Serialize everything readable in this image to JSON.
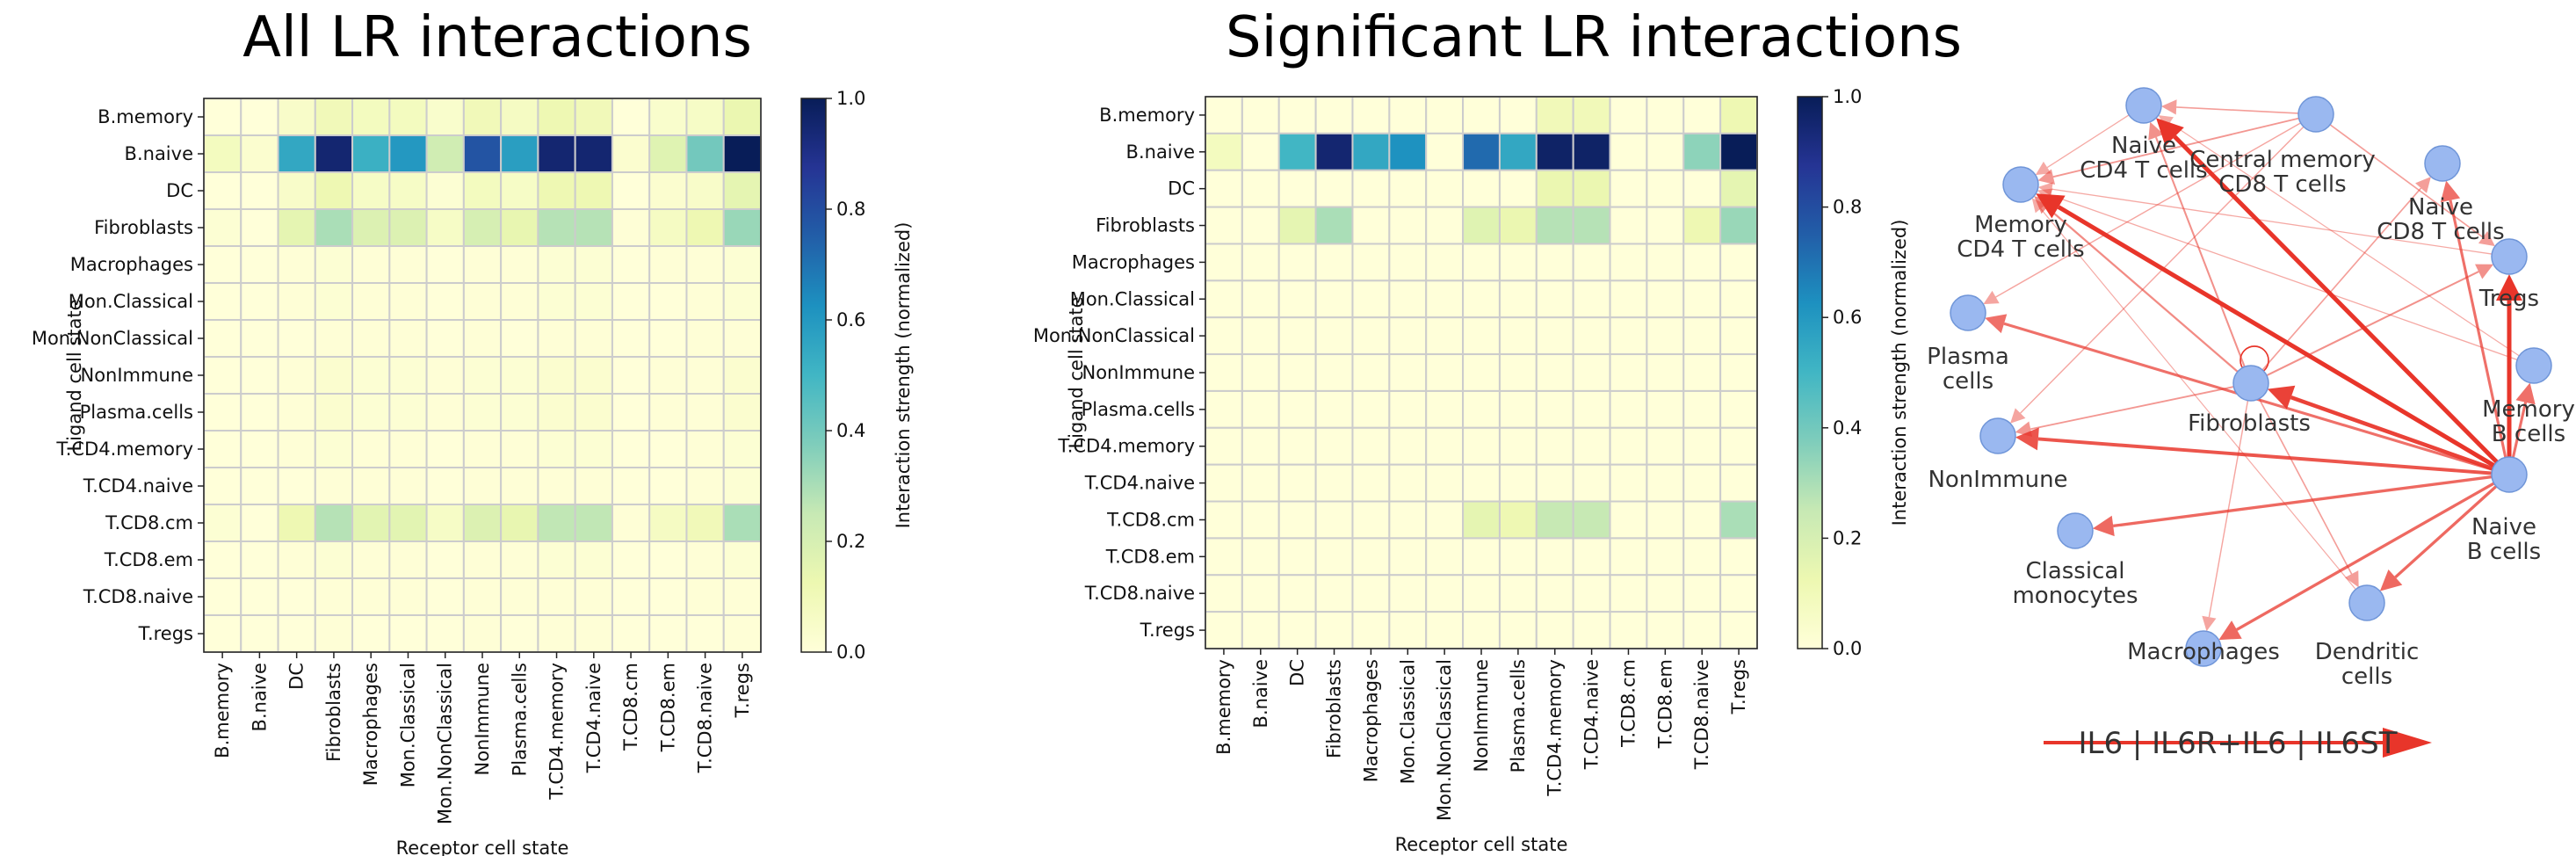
{
  "colorbar_ticks": [
    "0.0",
    "0.2",
    "0.4",
    "0.6",
    "0.8",
    "1.0"
  ],
  "colors": {
    "heatmap_low": "#ffffd9",
    "heatmap_mid": "#41b6c4",
    "heatmap_high": "#081d58",
    "grid": "#cccccc",
    "node_fill": "#9ab8f0",
    "node_stroke": "#6f95d8",
    "edge": "#e8352a"
  },
  "chart_data": [
    {
      "type": "heatmap",
      "title": "All LR interactions",
      "xlabel": "Receptor cell state",
      "ylabel": "Ligand cell state",
      "colorbar_label": "Interaction strength (normalized)",
      "colorbar_range": [
        0,
        1
      ],
      "rows": [
        "B.memory",
        "B.naive",
        "DC",
        "Fibroblasts",
        "Macrophages",
        "Mon.Classical",
        "Mon.NonClassical",
        "NonImmune",
        "Plasma.cells",
        "T.CD4.memory",
        "T.CD4.naive",
        "T.CD8.cm",
        "T.CD8.em",
        "T.CD8.naive",
        "T.regs"
      ],
      "columns": [
        "B.memory",
        "B.naive",
        "DC",
        "Fibroblasts",
        "Macrophages",
        "Mon.Classical",
        "Mon.NonClassical",
        "NonImmune",
        "Plasma.cells",
        "T.CD4.memory",
        "T.CD4.naive",
        "T.CD8.cm",
        "T.CD8.em",
        "T.CD8.naive",
        "T.regs"
      ],
      "values": [
        [
          0,
          0,
          0.05,
          0.1,
          0.08,
          0.08,
          0.04,
          0.1,
          0.07,
          0.12,
          0.1,
          0,
          0.04,
          0.06,
          0.13
        ],
        [
          0.08,
          0.03,
          0.55,
          0.95,
          0.52,
          0.6,
          0.22,
          0.78,
          0.58,
          0.95,
          0.95,
          0.03,
          0.17,
          0.4,
          1.0
        ],
        [
          0,
          0,
          0.05,
          0.12,
          0.06,
          0.06,
          0.02,
          0.08,
          0.06,
          0.12,
          0.12,
          0,
          0.03,
          0.05,
          0.15
        ],
        [
          0.02,
          0,
          0.15,
          0.3,
          0.18,
          0.18,
          0.06,
          0.2,
          0.14,
          0.28,
          0.28,
          0.01,
          0.07,
          0.12,
          0.33
        ],
        [
          0,
          0,
          0.01,
          0.02,
          0.01,
          0.01,
          0,
          0.01,
          0.01,
          0.02,
          0.02,
          0,
          0.01,
          0.01,
          0.02
        ],
        [
          0,
          0,
          0.01,
          0.02,
          0.01,
          0.01,
          0,
          0.01,
          0.01,
          0.02,
          0.02,
          0,
          0,
          0.01,
          0.02
        ],
        [
          0,
          0,
          0,
          0.01,
          0.01,
          0.01,
          0,
          0.01,
          0,
          0.01,
          0.01,
          0,
          0,
          0.01,
          0.01
        ],
        [
          0,
          0,
          0.01,
          0.03,
          0.02,
          0.02,
          0.01,
          0.02,
          0.02,
          0.03,
          0.03,
          0,
          0.01,
          0.01,
          0.03
        ],
        [
          0,
          0,
          0.01,
          0.03,
          0.02,
          0.02,
          0.01,
          0.02,
          0.02,
          0.03,
          0.03,
          0,
          0.01,
          0.01,
          0.03
        ],
        [
          0,
          0,
          0.01,
          0.02,
          0.01,
          0.01,
          0,
          0.01,
          0.01,
          0.02,
          0.02,
          0,
          0,
          0.01,
          0.02
        ],
        [
          0,
          0,
          0,
          0.01,
          0.01,
          0.01,
          0,
          0.01,
          0.01,
          0.01,
          0.01,
          0,
          0,
          0.01,
          0.02
        ],
        [
          0.02,
          0,
          0.12,
          0.28,
          0.16,
          0.16,
          0.06,
          0.18,
          0.14,
          0.26,
          0.26,
          0.01,
          0.07,
          0.1,
          0.3
        ],
        [
          0,
          0,
          0.01,
          0.02,
          0.01,
          0.01,
          0,
          0.01,
          0.01,
          0.02,
          0.02,
          0,
          0,
          0.01,
          0.02
        ],
        [
          0,
          0,
          0,
          0.01,
          0.01,
          0.01,
          0,
          0.01,
          0.01,
          0.01,
          0.01,
          0,
          0,
          0.01,
          0.01
        ],
        [
          0,
          0,
          0,
          0.01,
          0,
          0,
          0,
          0.01,
          0,
          0.01,
          0.01,
          0,
          0,
          0,
          0.01
        ]
      ]
    },
    {
      "type": "heatmap",
      "title": "Significant LR interactions",
      "xlabel": "Receptor cell state",
      "ylabel": "Ligand cell state",
      "colorbar_label": "Interaction strength (normalized)",
      "colorbar_range": [
        0,
        1
      ],
      "rows": [
        "B.memory",
        "B.naive",
        "DC",
        "Fibroblasts",
        "Macrophages",
        "Mon.Classical",
        "Mon.NonClassical",
        "NonImmune",
        "Plasma.cells",
        "T.CD4.memory",
        "T.CD4.naive",
        "T.CD8.cm",
        "T.CD8.em",
        "T.CD8.naive",
        "T.regs"
      ],
      "columns": [
        "B.memory",
        "B.naive",
        "DC",
        "Fibroblasts",
        "Macrophages",
        "Mon.Classical",
        "Mon.NonClassical",
        "NonImmune",
        "Plasma.cells",
        "T.CD4.memory",
        "T.CD4.naive",
        "T.CD8.cm",
        "T.CD8.em",
        "T.CD8.naive",
        "T.regs"
      ],
      "values": [
        [
          0,
          0,
          0,
          0,
          0,
          0,
          0,
          0,
          0,
          0.1,
          0.1,
          0,
          0,
          0,
          0.12
        ],
        [
          0.08,
          0,
          0.5,
          0.95,
          0.55,
          0.62,
          0,
          0.72,
          0.55,
          0.97,
          0.97,
          0,
          0,
          0.35,
          1.0
        ],
        [
          0,
          0,
          0,
          0,
          0,
          0,
          0,
          0,
          0,
          0.13,
          0.13,
          0,
          0,
          0,
          0.15
        ],
        [
          0,
          0,
          0.15,
          0.3,
          0,
          0,
          0,
          0.17,
          0.13,
          0.28,
          0.28,
          0,
          0,
          0.12,
          0.33
        ],
        [
          0,
          0,
          0,
          0,
          0,
          0,
          0,
          0,
          0,
          0,
          0,
          0,
          0,
          0,
          0
        ],
        [
          0,
          0,
          0,
          0,
          0,
          0,
          0,
          0,
          0,
          0,
          0,
          0,
          0,
          0,
          0
        ],
        [
          0,
          0,
          0,
          0,
          0,
          0,
          0,
          0,
          0,
          0,
          0,
          0,
          0,
          0,
          0
        ],
        [
          0,
          0,
          0,
          0,
          0,
          0,
          0,
          0,
          0,
          0,
          0,
          0,
          0,
          0,
          0
        ],
        [
          0,
          0,
          0,
          0,
          0,
          0,
          0,
          0,
          0,
          0,
          0,
          0,
          0,
          0,
          0
        ],
        [
          0,
          0,
          0,
          0,
          0,
          0,
          0,
          0,
          0,
          0,
          0,
          0,
          0,
          0,
          0
        ],
        [
          0,
          0,
          0,
          0,
          0,
          0,
          0,
          0,
          0,
          0,
          0,
          0,
          0,
          0,
          0
        ],
        [
          0,
          0,
          0,
          0,
          0,
          0,
          0,
          0.15,
          0.12,
          0.25,
          0.25,
          0,
          0,
          0,
          0.3
        ],
        [
          0,
          0,
          0,
          0,
          0,
          0,
          0,
          0,
          0,
          0,
          0,
          0,
          0,
          0,
          0
        ],
        [
          0,
          0,
          0,
          0,
          0,
          0,
          0,
          0,
          0,
          0,
          0,
          0,
          0,
          0,
          0
        ],
        [
          0,
          0,
          0,
          0,
          0,
          0,
          0,
          0,
          0,
          0,
          0,
          0,
          0,
          0,
          0
        ]
      ]
    },
    {
      "type": "network",
      "legend": "IL6 | IL6R+IL6 | IL6ST",
      "nodes": [
        {
          "id": "naive_cd4",
          "label": "Naive\nCD4 T cells"
        },
        {
          "id": "cm_cd8",
          "label": "Central memory\nCD8 T cells"
        },
        {
          "id": "naive_cd8",
          "label": "Naive\nCD8 T cells"
        },
        {
          "id": "tregs",
          "label": "Tregs"
        },
        {
          "id": "mem_b",
          "label": "Memory\nB cells"
        },
        {
          "id": "naive_b",
          "label": "Naive\nB cells"
        },
        {
          "id": "dc",
          "label": "Dendritic\ncells"
        },
        {
          "id": "macro",
          "label": "Macrophages"
        },
        {
          "id": "classical",
          "label": "Classical\nmonocytes"
        },
        {
          "id": "nonimmune",
          "label": "NonImmune"
        },
        {
          "id": "plasma",
          "label": "Plasma\ncells"
        },
        {
          "id": "mem_cd4",
          "label": "Memory\nCD4 T cells"
        },
        {
          "id": "fibro",
          "label": "Fibroblasts"
        }
      ],
      "edges": [
        {
          "from": "naive_b",
          "to": "mem_cd4",
          "weight": 1.0
        },
        {
          "from": "naive_b",
          "to": "naive_cd4",
          "weight": 1.0
        },
        {
          "from": "naive_b",
          "to": "tregs",
          "weight": 1.0
        },
        {
          "from": "naive_b",
          "to": "fibro",
          "weight": 0.9
        },
        {
          "from": "naive_b",
          "to": "nonimmune",
          "weight": 0.75
        },
        {
          "from": "naive_b",
          "to": "classical",
          "weight": 0.6
        },
        {
          "from": "naive_b",
          "to": "macro",
          "weight": 0.6
        },
        {
          "from": "naive_b",
          "to": "dc",
          "weight": 0.6
        },
        {
          "from": "naive_b",
          "to": "mem_b",
          "weight": 0.55
        },
        {
          "from": "naive_b",
          "to": "plasma",
          "weight": 0.55
        },
        {
          "from": "naive_b",
          "to": "naive_cd8",
          "weight": 0.55
        },
        {
          "from": "fibro",
          "to": "mem_cd4",
          "weight": 0.35
        },
        {
          "from": "fibro",
          "to": "naive_cd4",
          "weight": 0.3
        },
        {
          "from": "fibro",
          "to": "tregs",
          "weight": 0.3
        },
        {
          "from": "fibro",
          "to": "nonimmune",
          "weight": 0.25
        },
        {
          "from": "fibro",
          "to": "naive_cd8",
          "weight": 0.2
        },
        {
          "from": "fibro",
          "to": "dc",
          "weight": 0.2
        },
        {
          "from": "fibro",
          "to": "macro",
          "weight": 0.15
        },
        {
          "from": "fibro",
          "to": "fibro",
          "weight": 0.2
        },
        {
          "from": "cm_cd8",
          "to": "mem_cd4",
          "weight": 0.25
        },
        {
          "from": "cm_cd8",
          "to": "naive_cd4",
          "weight": 0.2
        },
        {
          "from": "cm_cd8",
          "to": "tregs",
          "weight": 0.2
        },
        {
          "from": "cm_cd8",
          "to": "nonimmune",
          "weight": 0.15
        },
        {
          "from": "cm_cd8",
          "to": "plasma",
          "weight": 0.15
        },
        {
          "from": "naive_cd4",
          "to": "mem_cd4",
          "weight": 0.12
        },
        {
          "from": "mem_b",
          "to": "mem_cd4",
          "weight": 0.12
        },
        {
          "from": "tregs",
          "to": "mem_cd4",
          "weight": 0.12
        },
        {
          "from": "dc",
          "to": "mem_cd4",
          "weight": 0.1
        },
        {
          "from": "mem_b",
          "to": "naive_cd4",
          "weight": 0.1
        }
      ]
    }
  ]
}
